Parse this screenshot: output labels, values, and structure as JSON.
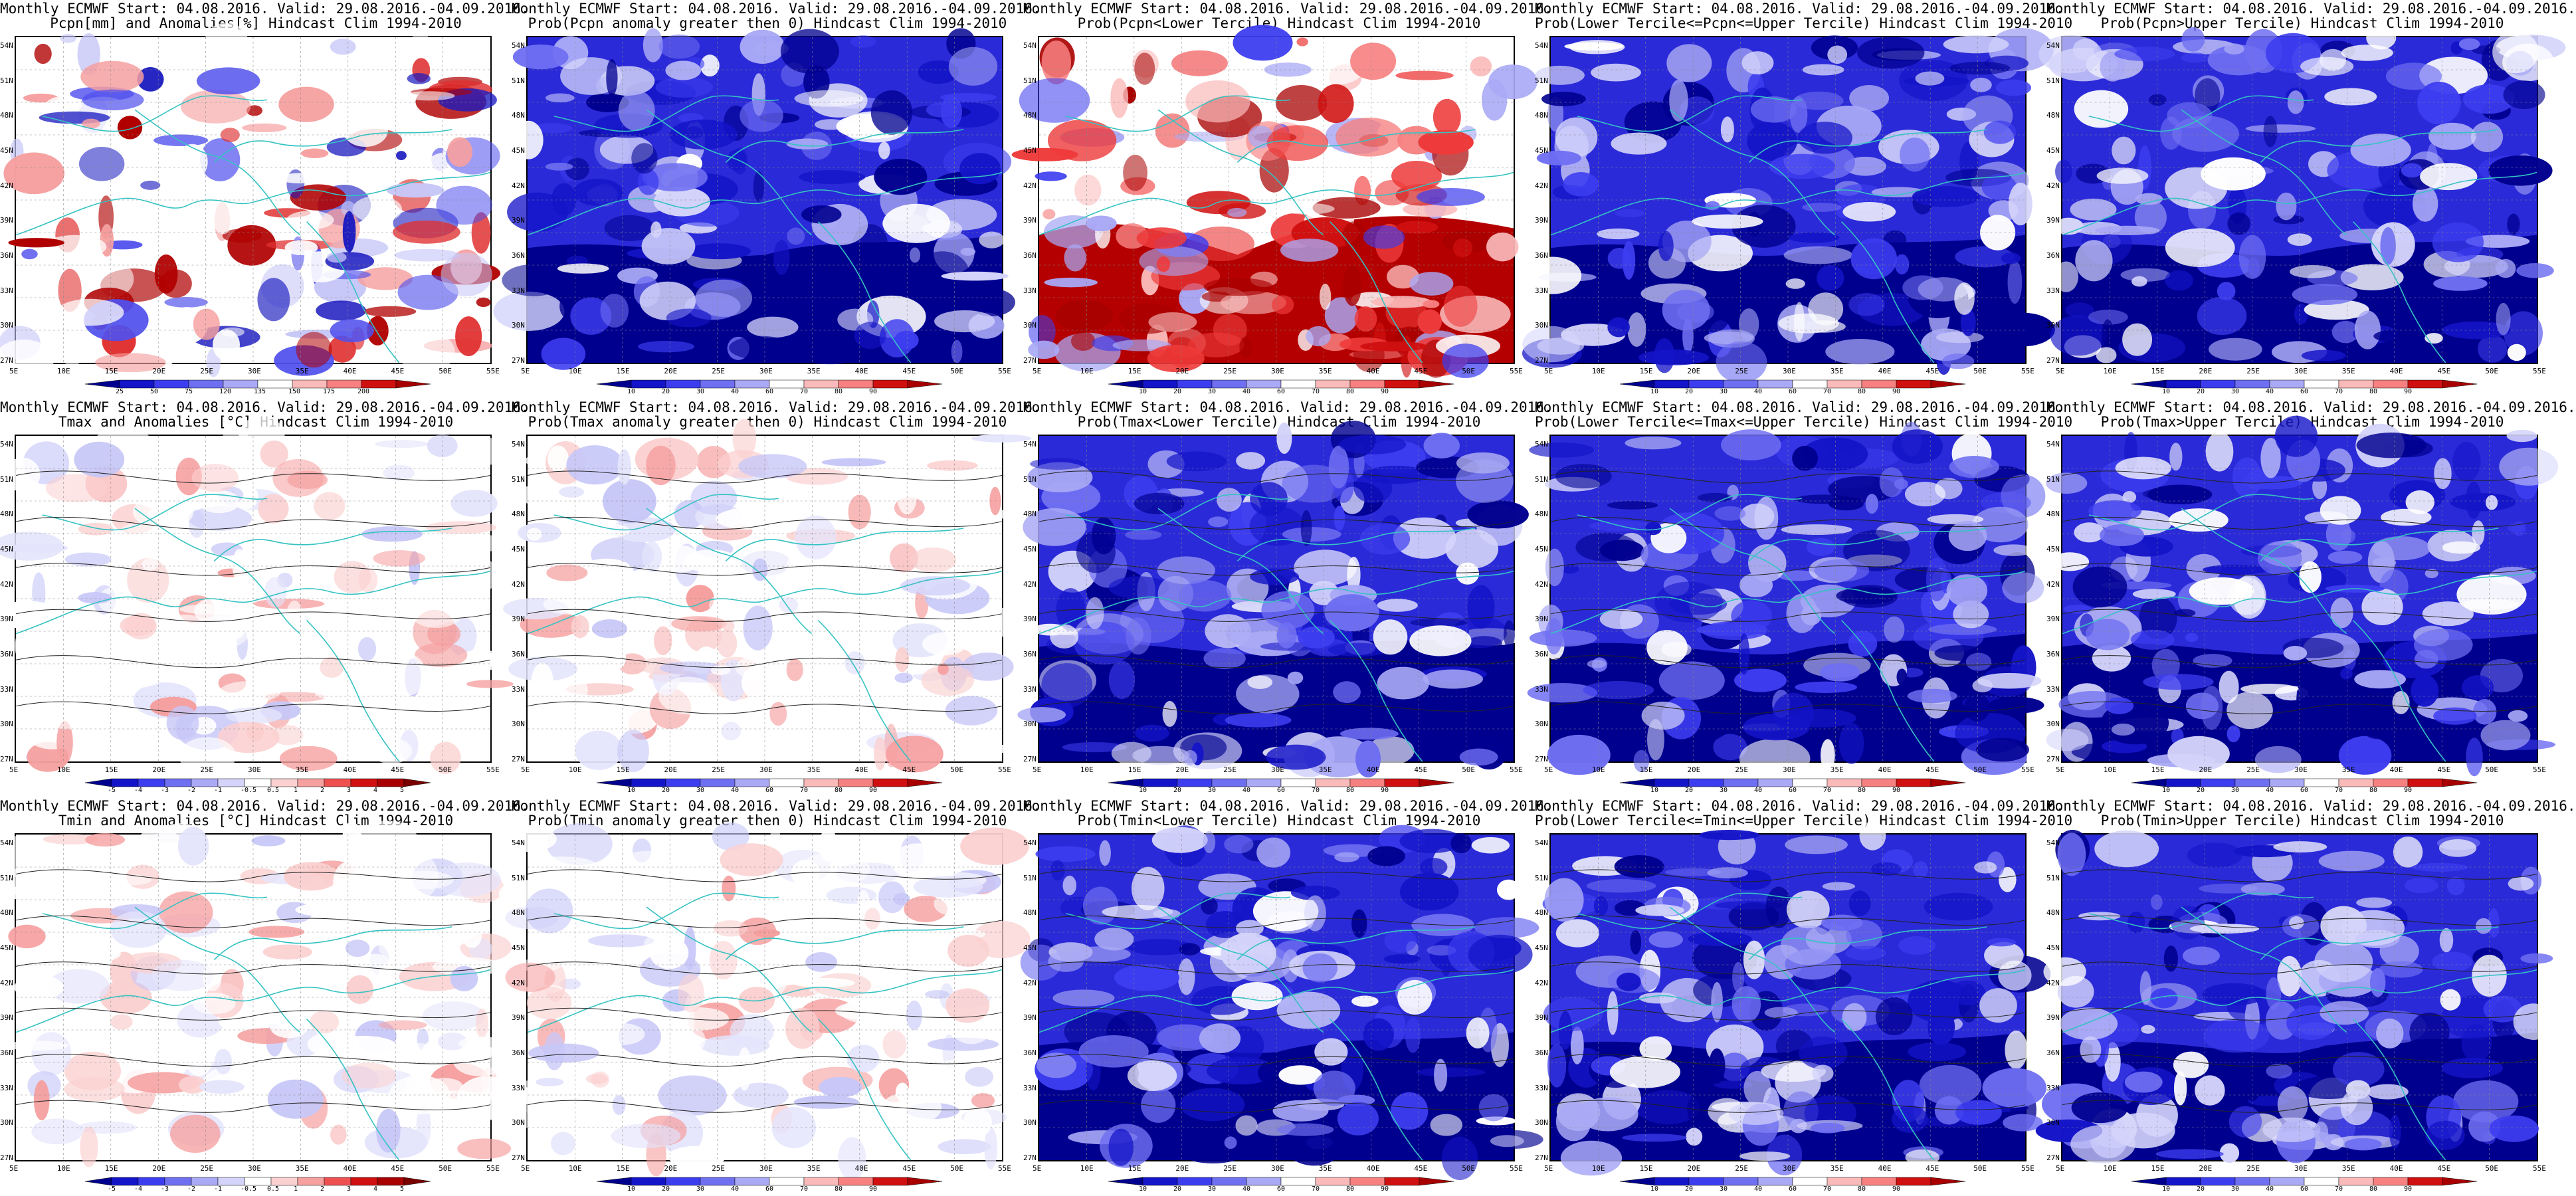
{
  "colors": {
    "land_line": "#35c2c2",
    "contour": "#222222",
    "frame": "#000000"
  },
  "lat_labels": [
    "54N",
    "51N",
    "48N",
    "45N",
    "42N",
    "39N",
    "36N",
    "33N",
    "30N",
    "27N"
  ],
  "lon_labels": [
    "5E",
    "10E",
    "15E",
    "20E",
    "25E",
    "30E",
    "35E",
    "40E",
    "45E",
    "50E",
    "55E"
  ],
  "legends": {
    "prob": [
      "10",
      "20",
      "30",
      "40",
      "60",
      "70",
      "80",
      "90"
    ],
    "prcp": [
      "25",
      "50",
      "75",
      "120",
      "135",
      "150",
      "175",
      "200"
    ],
    "temp": [
      "-5",
      "-4",
      "-3",
      "-2",
      "-1",
      "-0.5",
      "0.5",
      "1",
      "2",
      "3",
      "4",
      "5"
    ]
  },
  "panels": [
    {
      "line1": "Monthly ECMWF Start: 04.08.2016. Valid: 29.08.2016.-04.09.2016.",
      "line2": "Pcpn[mm] and Anomalies[%] Hindcast Clim 1994-2010",
      "legend": "prcp",
      "scheme": "anom",
      "seed": 3,
      "bias": 0.0
    },
    {
      "line1": "Monthly ECMWF Start: 04.08.2016. Valid: 29.08.2016.-04.09.2016.",
      "line2": "Prob(Pcpn anomaly greater then 0) Hindcast Clim 1994-2010",
      "legend": "prob",
      "scheme": "blue",
      "seed": 7,
      "bias": 0.35
    },
    {
      "line1": "Monthly ECMWF Start: 04.08.2016. Valid: 29.08.2016.-04.09.2016.",
      "line2": "Prob(Pcpn<Lower Tercile) Hindcast Clim 1994-2010",
      "legend": "prob",
      "scheme": "red",
      "seed": 11,
      "bias": 0.0
    },
    {
      "line1": "Monthly ECMWF Start: 04.08.2016. Valid: 29.08.2016.-04.09.2016.",
      "line2": "Prob(Lower Tercile<=Pcpn<=Upper Tercile) Hindcast Clim 1994-2010",
      "legend": "prob",
      "scheme": "blue",
      "seed": 13,
      "bias": 0.45
    },
    {
      "line1": "Monthly ECMWF Start: 04.08.2016. Valid: 29.08.2016.-04.09.2016.",
      "line2": "Prob(Pcpn>Upper Tercile) Hindcast Clim 1994-2010",
      "legend": "prob",
      "scheme": "blue",
      "seed": 17,
      "bias": 0.4
    },
    {
      "line1": "Monthly ECMWF Start: 04.08.2016. Valid: 29.08.2016.-04.09.2016.",
      "line2": "Tmax and Anomalies [°C] Hindcast Clim 1994-2010",
      "legend": "temp",
      "scheme": "light",
      "seed": 19,
      "bias": 0.0
    },
    {
      "line1": "Monthly ECMWF Start: 04.08.2016. Valid: 29.08.2016.-04.09.2016.",
      "line2": "Prob(Tmax anomaly greater then 0) Hindcast Clim 1994-2010",
      "legend": "prob",
      "scheme": "light",
      "seed": 23,
      "bias": 0.05
    },
    {
      "line1": "Monthly ECMWF Start: 04.08.2016. Valid: 29.08.2016.-04.09.2016.",
      "line2": "Prob(Tmax<Lower Tercile) Hindcast Clim 1994-2010",
      "legend": "prob",
      "scheme": "blue",
      "seed": 29,
      "bias": 0.15
    },
    {
      "line1": "Monthly ECMWF Start: 04.08.2016. Valid: 29.08.2016.-04.09.2016.",
      "line2": "Prob(Lower Tercile<=Tmax<=Upper Tercile) Hindcast Clim 1994-2010",
      "legend": "prob",
      "scheme": "blue",
      "seed": 31,
      "bias": 0.05
    },
    {
      "line1": "Monthly ECMWF Start: 04.08.2016. Valid: 29.08.2016.-04.09.2016.",
      "line2": "Prob(Tmax>Upper Tercile) Hindcast Clim 1994-2010",
      "legend": "prob",
      "scheme": "blue",
      "seed": 37,
      "bias": 0.1
    },
    {
      "line1": "Monthly ECMWF Start: 04.08.2016. Valid: 29.08.2016.-04.09.2016.",
      "line2": "Tmin and Anomalies [°C] Hindcast Clim 1994-2010",
      "legend": "temp",
      "scheme": "light",
      "seed": 41,
      "bias": 0.0
    },
    {
      "line1": "Monthly ECMWF Start: 04.08.2016. Valid: 29.08.2016.-04.09.2016.",
      "line2": "Prob(Tmin anomaly greater then 0) Hindcast Clim 1994-2010",
      "legend": "prob",
      "scheme": "light",
      "seed": 43,
      "bias": 0.1
    },
    {
      "line1": "Monthly ECMWF Start: 04.08.2016. Valid: 29.08.2016.-04.09.2016.",
      "line2": "Prob(Tmin<Lower Tercile) Hindcast Clim 1994-2010",
      "legend": "prob",
      "scheme": "blue",
      "seed": 47,
      "bias": 0.2
    },
    {
      "line1": "Monthly ECMWF Start: 04.08.2016. Valid: 29.08.2016.-04.09.2016.",
      "line2": "Prob(Lower Tercile<=Tmin<=Upper Tercile) Hindcast Clim 1994-2010",
      "legend": "prob",
      "scheme": "blue",
      "seed": 53,
      "bias": 0.15
    },
    {
      "line1": "Monthly ECMWF Start: 04.08.2016. Valid: 29.08.2016.-04.09.2016.",
      "line2": "Prob(Tmin>Upper Tercile) Hindcast Clim 1994-2010",
      "legend": "prob",
      "scheme": "blue",
      "seed": 59,
      "bias": 0.15
    }
  ]
}
